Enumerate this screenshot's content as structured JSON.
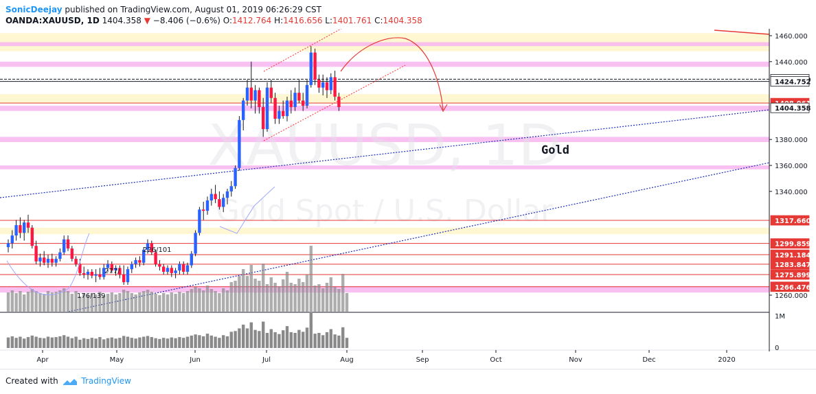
{
  "header": {
    "author": "SonicDeejay",
    "published_text": "published on TradingView.com, August 01, 2019 06:26:29 CST",
    "symbol": "OANDA:XAUUSD, 1D",
    "last": "1404.358",
    "change": "−8.406 (−0.6%)",
    "o_label": "O:",
    "o_val": "1412.764",
    "h_label": "H:",
    "h_val": "1416.656",
    "l_label": "L:",
    "l_val": "1401.761",
    "c_label": "C:",
    "c_val": "1404.358"
  },
  "watermark": {
    "symbol": "XAUUSD, 1D",
    "description": "Gold Spot / U.S. Dollar"
  },
  "annotation": "Gold",
  "footer": {
    "created_with": "Created with",
    "brand": "TradingView"
  },
  "colors": {
    "up": "#2962ff",
    "down": "#ff1744",
    "zone_pink": "#f8b6f0",
    "zone_yellow": "#fff6cc",
    "trend_blue": "#1a2bb8",
    "trend_red": "#ff3030"
  },
  "chart_data": {
    "type": "candlestick",
    "symbol": "OANDA:XAUUSD",
    "timeframe": "1D",
    "ylim": [
      1257,
      1467
    ],
    "price_ticks": [
      1260,
      1340,
      1360,
      1380,
      1440,
      1460
    ],
    "price_tick_labels": [
      "1260.000",
      "1340.000",
      "1360.000",
      "1380.000",
      "1440.000",
      "1460.000"
    ],
    "x_labels": [
      "Apr",
      "May",
      "Jun",
      "Jul",
      "Aug",
      "Sep",
      "Oct",
      "Nov",
      "Dec",
      "2020"
    ],
    "volume_axis": [
      "1M",
      "0"
    ],
    "level_labels": [
      {
        "text": "1426.440",
        "price": 1426.44,
        "style": "white"
      },
      {
        "text": "1424.752",
        "price": 1424.752,
        "style": "white"
      },
      {
        "text": "1408.061",
        "price": 1408.061,
        "style": "red"
      },
      {
        "text": "1404.358",
        "price": 1404.358,
        "style": "dark"
      },
      {
        "text": "1317.660",
        "price": 1317.66,
        "style": "red"
      },
      {
        "text": "1299.859",
        "price": 1299.859,
        "style": "red"
      },
      {
        "text": "1291.184",
        "price": 1291.184,
        "style": "red"
      },
      {
        "text": "1283.847",
        "price": 1283.847,
        "style": "red"
      },
      {
        "text": "1275.899",
        "price": 1275.899,
        "style": "red"
      },
      {
        "text": "1266.476",
        "price": 1266.476,
        "style": "red"
      }
    ],
    "pink_zones": [
      [
        1452,
        1455
      ],
      [
        1436,
        1440
      ],
      [
        1402,
        1406
      ],
      [
        1378,
        1382
      ],
      [
        1357,
        1360
      ],
      [
        1262,
        1267
      ]
    ],
    "yellow_zones": [
      [
        1448,
        1462
      ],
      [
        1408,
        1415
      ],
      [
        1307,
        1312
      ]
    ],
    "candles": [
      {
        "o": 1297,
        "h": 1303,
        "l": 1293,
        "c": 1300
      },
      {
        "o": 1300,
        "h": 1310,
        "l": 1296,
        "c": 1306
      },
      {
        "o": 1306,
        "h": 1318,
        "l": 1302,
        "c": 1314
      },
      {
        "o": 1314,
        "h": 1320,
        "l": 1304,
        "c": 1308
      },
      {
        "o": 1308,
        "h": 1318,
        "l": 1302,
        "c": 1316
      },
      {
        "o": 1316,
        "h": 1322,
        "l": 1308,
        "c": 1312
      },
      {
        "o": 1312,
        "h": 1314,
        "l": 1296,
        "c": 1298
      },
      {
        "o": 1298,
        "h": 1302,
        "l": 1284,
        "c": 1286
      },
      {
        "o": 1286,
        "h": 1292,
        "l": 1282,
        "c": 1289
      },
      {
        "o": 1289,
        "h": 1294,
        "l": 1283,
        "c": 1285
      },
      {
        "o": 1285,
        "h": 1291,
        "l": 1281,
        "c": 1288
      },
      {
        "o": 1288,
        "h": 1292,
        "l": 1282,
        "c": 1285
      },
      {
        "o": 1285,
        "h": 1290,
        "l": 1282,
        "c": 1288
      },
      {
        "o": 1288,
        "h": 1296,
        "l": 1286,
        "c": 1293
      },
      {
        "o": 1293,
        "h": 1306,
        "l": 1291,
        "c": 1303
      },
      {
        "o": 1303,
        "h": 1306,
        "l": 1294,
        "c": 1296
      },
      {
        "o": 1296,
        "h": 1298,
        "l": 1286,
        "c": 1288
      },
      {
        "o": 1288,
        "h": 1290,
        "l": 1282,
        "c": 1284
      },
      {
        "o": 1284,
        "h": 1288,
        "l": 1275,
        "c": 1277
      },
      {
        "o": 1277,
        "h": 1282,
        "l": 1273,
        "c": 1276
      },
      {
        "o": 1276,
        "h": 1280,
        "l": 1272,
        "c": 1278
      },
      {
        "o": 1278,
        "h": 1280,
        "l": 1273,
        "c": 1275
      },
      {
        "o": 1275,
        "h": 1280,
        "l": 1270,
        "c": 1276
      },
      {
        "o": 1276,
        "h": 1281,
        "l": 1272,
        "c": 1274
      },
      {
        "o": 1274,
        "h": 1284,
        "l": 1272,
        "c": 1281
      },
      {
        "o": 1281,
        "h": 1287,
        "l": 1278,
        "c": 1284
      },
      {
        "o": 1284,
        "h": 1286,
        "l": 1277,
        "c": 1279
      },
      {
        "o": 1279,
        "h": 1283,
        "l": 1275,
        "c": 1281
      },
      {
        "o": 1281,
        "h": 1283,
        "l": 1273,
        "c": 1276
      },
      {
        "o": 1276,
        "h": 1283,
        "l": 1268,
        "c": 1270
      },
      {
        "o": 1270,
        "h": 1282,
        "l": 1268,
        "c": 1280
      },
      {
        "o": 1280,
        "h": 1286,
        "l": 1277,
        "c": 1284
      },
      {
        "o": 1284,
        "h": 1289,
        "l": 1281,
        "c": 1287
      },
      {
        "o": 1287,
        "h": 1290,
        "l": 1282,
        "c": 1285
      },
      {
        "o": 1285,
        "h": 1297,
        "l": 1283,
        "c": 1295
      },
      {
        "o": 1295,
        "h": 1303,
        "l": 1292,
        "c": 1300
      },
      {
        "o": 1300,
        "h": 1302,
        "l": 1291,
        "c": 1293
      },
      {
        "o": 1293,
        "h": 1295,
        "l": 1282,
        "c": 1284
      },
      {
        "o": 1284,
        "h": 1287,
        "l": 1279,
        "c": 1282
      },
      {
        "o": 1282,
        "h": 1284,
        "l": 1276,
        "c": 1278
      },
      {
        "o": 1278,
        "h": 1283,
        "l": 1276,
        "c": 1281
      },
      {
        "o": 1281,
        "h": 1283,
        "l": 1274,
        "c": 1277
      },
      {
        "o": 1277,
        "h": 1281,
        "l": 1273,
        "c": 1279
      },
      {
        "o": 1279,
        "h": 1286,
        "l": 1276,
        "c": 1284
      },
      {
        "o": 1284,
        "h": 1286,
        "l": 1276,
        "c": 1278
      },
      {
        "o": 1278,
        "h": 1285,
        "l": 1276,
        "c": 1283
      },
      {
        "o": 1283,
        "h": 1294,
        "l": 1281,
        "c": 1292
      },
      {
        "o": 1292,
        "h": 1310,
        "l": 1290,
        "c": 1308
      },
      {
        "o": 1308,
        "h": 1328,
        "l": 1306,
        "c": 1326
      },
      {
        "o": 1326,
        "h": 1332,
        "l": 1318,
        "c": 1325
      },
      {
        "o": 1325,
        "h": 1336,
        "l": 1322,
        "c": 1333
      },
      {
        "o": 1333,
        "h": 1342,
        "l": 1329,
        "c": 1338
      },
      {
        "o": 1338,
        "h": 1345,
        "l": 1331,
        "c": 1334
      },
      {
        "o": 1334,
        "h": 1340,
        "l": 1326,
        "c": 1328
      },
      {
        "o": 1328,
        "h": 1338,
        "l": 1324,
        "c": 1335
      },
      {
        "o": 1335,
        "h": 1342,
        "l": 1330,
        "c": 1340
      },
      {
        "o": 1340,
        "h": 1348,
        "l": 1336,
        "c": 1344
      },
      {
        "o": 1344,
        "h": 1360,
        "l": 1342,
        "c": 1358
      },
      {
        "o": 1358,
        "h": 1398,
        "l": 1356,
        "c": 1395
      },
      {
        "o": 1395,
        "h": 1412,
        "l": 1387,
        "c": 1410
      },
      {
        "o": 1410,
        "h": 1426,
        "l": 1406,
        "c": 1420
      },
      {
        "o": 1420,
        "h": 1440,
        "l": 1404,
        "c": 1410
      },
      {
        "o": 1410,
        "h": 1422,
        "l": 1400,
        "c": 1418
      },
      {
        "o": 1418,
        "h": 1420,
        "l": 1400,
        "c": 1405
      },
      {
        "o": 1405,
        "h": 1412,
        "l": 1382,
        "c": 1388
      },
      {
        "o": 1388,
        "h": 1424,
        "l": 1386,
        "c": 1420
      },
      {
        "o": 1420,
        "h": 1426,
        "l": 1408,
        "c": 1412
      },
      {
        "o": 1412,
        "h": 1416,
        "l": 1392,
        "c": 1396
      },
      {
        "o": 1396,
        "h": 1406,
        "l": 1392,
        "c": 1402
      },
      {
        "o": 1402,
        "h": 1410,
        "l": 1396,
        "c": 1398
      },
      {
        "o": 1398,
        "h": 1413,
        "l": 1394,
        "c": 1410
      },
      {
        "o": 1410,
        "h": 1418,
        "l": 1400,
        "c": 1405
      },
      {
        "o": 1405,
        "h": 1420,
        "l": 1402,
        "c": 1416
      },
      {
        "o": 1416,
        "h": 1426,
        "l": 1408,
        "c": 1410
      },
      {
        "o": 1410,
        "h": 1416,
        "l": 1402,
        "c": 1406
      },
      {
        "o": 1406,
        "h": 1426,
        "l": 1404,
        "c": 1422
      },
      {
        "o": 1422,
        "h": 1452,
        "l": 1420,
        "c": 1447
      },
      {
        "o": 1447,
        "h": 1450,
        "l": 1422,
        "c": 1426
      },
      {
        "o": 1426,
        "h": 1430,
        "l": 1416,
        "c": 1420
      },
      {
        "o": 1420,
        "h": 1430,
        "l": 1414,
        "c": 1424
      },
      {
        "o": 1424,
        "h": 1428,
        "l": 1412,
        "c": 1418
      },
      {
        "o": 1418,
        "h": 1431,
        "l": 1415,
        "c": 1428
      },
      {
        "o": 1428,
        "h": 1433,
        "l": 1410,
        "c": 1413
      },
      {
        "o": 1413,
        "h": 1416,
        "l": 1402,
        "c": 1405
      }
    ],
    "volumes": [
      0.28,
      0.31,
      0.27,
      0.3,
      0.25,
      0.29,
      0.33,
      0.3,
      0.27,
      0.26,
      0.3,
      0.28,
      0.29,
      0.31,
      0.34,
      0.3,
      0.26,
      0.3,
      0.22,
      0.26,
      0.24,
      0.27,
      0.25,
      0.29,
      0.23,
      0.26,
      0.28,
      0.25,
      0.27,
      0.32,
      0.3,
      0.27,
      0.25,
      0.28,
      0.3,
      0.32,
      0.29,
      0.26,
      0.24,
      0.27,
      0.25,
      0.28,
      0.26,
      0.29,
      0.27,
      0.3,
      0.33,
      0.36,
      0.34,
      0.31,
      0.38,
      0.33,
      0.3,
      0.27,
      0.34,
      0.31,
      0.43,
      0.45,
      0.52,
      0.62,
      0.52,
      0.68,
      0.48,
      0.45,
      0.7,
      0.4,
      0.5,
      0.42,
      0.37,
      0.47,
      0.58,
      0.42,
      0.4,
      0.48,
      0.43,
      0.54,
      0.96,
      0.38,
      0.4,
      0.34,
      0.42,
      0.5,
      0.36,
      0.33,
      0.55,
      0.27
    ]
  }
}
